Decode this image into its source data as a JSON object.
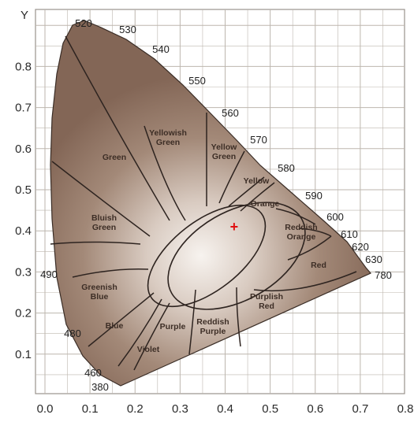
{
  "axes": {
    "y_label": "Y",
    "x_ticks": [
      "0.0",
      "0.1",
      "0.2",
      "0.3",
      "0.4",
      "0.5",
      "0.6",
      "0.7",
      "0.8"
    ],
    "y_ticks": [
      "0.1",
      "0.2",
      "0.3",
      "0.4",
      "0.5",
      "0.6",
      "0.7",
      "0.8"
    ],
    "x_range": [
      0.0,
      0.8
    ],
    "y_range": [
      0.0,
      0.9
    ],
    "grid": true
  },
  "wavelength_labels": [
    "380",
    "460",
    "480",
    "490",
    "520",
    "530",
    "540",
    "550",
    "560",
    "570",
    "580",
    "590",
    "600",
    "610",
    "620",
    "630",
    "780"
  ],
  "regions": [
    "Green",
    "Yellowish Green",
    "Yellow Green",
    "Yellow",
    "Orange",
    "Bluish Green",
    "Reddish Orange",
    "Red",
    "Greenish Blue",
    "Purplish Red",
    "Blue",
    "Purple",
    "Reddish Purple",
    "Violet"
  ],
  "marker": {
    "symbol": "+",
    "x": 0.42,
    "y": 0.41,
    "color": "#e01010"
  },
  "colors": {
    "gamut_fill": "#8b7262",
    "gamut_center": "#f5f0ec",
    "grid": "#bdb6ae",
    "boundary": "#2e2420"
  }
}
